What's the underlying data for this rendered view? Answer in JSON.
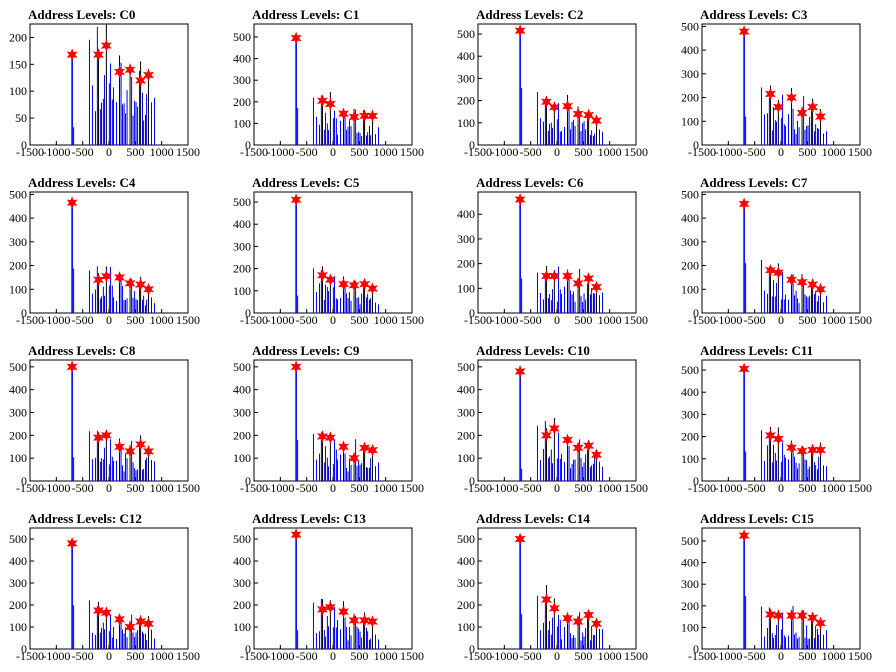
{
  "figure": {
    "style": {
      "frame_color": "#000000",
      "histogram_color": "#0000ff",
      "overflow_color": "#000000",
      "marker_color": "#ff0000",
      "marker_shape": "star"
    }
  },
  "chart_data": [
    {
      "type": "bar",
      "title": "Address Levels: C0",
      "xlim": [
        -1500,
        1500
      ],
      "ylim": [
        0,
        225
      ],
      "xticks": [
        "-1500",
        "-1000",
        "-500",
        "0",
        "500",
        "1000",
        "1500"
      ],
      "yticks": [
        "0",
        "50",
        "100",
        "150",
        "200"
      ],
      "peaks": [
        {
          "x": -700,
          "y": 168
        },
        {
          "x": -200,
          "y": 168
        },
        {
          "x": -50,
          "y": 185
        },
        {
          "x": 200,
          "y": 136
        },
        {
          "x": 400,
          "y": 140
        },
        {
          "x": 600,
          "y": 120
        },
        {
          "x": 750,
          "y": 130
        }
      ]
    },
    {
      "type": "bar",
      "title": "Address Levels: C1",
      "xlim": [
        -1500,
        1500
      ],
      "ylim": [
        0,
        560
      ],
      "xticks": [
        "-1500",
        "-1000",
        "-500",
        "0",
        "500",
        "1000",
        "1500"
      ],
      "yticks": [
        "0",
        "100",
        "200",
        "300",
        "400",
        "500"
      ],
      "peaks": [
        {
          "x": -700,
          "y": 495
        },
        {
          "x": -200,
          "y": 205
        },
        {
          "x": -50,
          "y": 190
        },
        {
          "x": 200,
          "y": 145
        },
        {
          "x": 400,
          "y": 130
        },
        {
          "x": 600,
          "y": 135
        },
        {
          "x": 750,
          "y": 135
        }
      ]
    },
    {
      "type": "bar",
      "title": "Address Levels: C2",
      "xlim": [
        -1500,
        1500
      ],
      "ylim": [
        0,
        545
      ],
      "xticks": [
        "-1500",
        "-1000",
        "-500",
        "0",
        "500",
        "1000",
        "1500"
      ],
      "yticks": [
        "0",
        "100",
        "200",
        "300",
        "400",
        "500"
      ],
      "peaks": [
        {
          "x": -700,
          "y": 515
        },
        {
          "x": -200,
          "y": 195
        },
        {
          "x": -50,
          "y": 170
        },
        {
          "x": 200,
          "y": 175
        },
        {
          "x": 400,
          "y": 140
        },
        {
          "x": 600,
          "y": 135
        },
        {
          "x": 750,
          "y": 110
        }
      ]
    },
    {
      "type": "bar",
      "title": "Address Levels: C3",
      "xlim": [
        -1500,
        1500
      ],
      "ylim": [
        0,
        510
      ],
      "xticks": [
        "-1500",
        "-1000",
        "-500",
        "0",
        "500",
        "1000",
        "1500"
      ],
      "yticks": [
        "0",
        "100",
        "200",
        "300",
        "400",
        "500"
      ],
      "peaks": [
        {
          "x": -700,
          "y": 478
        },
        {
          "x": -200,
          "y": 215
        },
        {
          "x": -50,
          "y": 160
        },
        {
          "x": 200,
          "y": 200
        },
        {
          "x": 400,
          "y": 135
        },
        {
          "x": 600,
          "y": 160
        },
        {
          "x": 750,
          "y": 120
        }
      ]
    },
    {
      "type": "bar",
      "title": "Address Levels: C4",
      "xlim": [
        -1500,
        1500
      ],
      "ylim": [
        0,
        510
      ],
      "xticks": [
        "-1500",
        "-1000",
        "-500",
        "0",
        "500",
        "1000",
        "1500"
      ],
      "yticks": [
        "0",
        "100",
        "200",
        "300",
        "400",
        "500"
      ],
      "peaks": [
        {
          "x": -700,
          "y": 465
        },
        {
          "x": -200,
          "y": 140
        },
        {
          "x": -50,
          "y": 155
        },
        {
          "x": 200,
          "y": 150
        },
        {
          "x": 400,
          "y": 125
        },
        {
          "x": 600,
          "y": 120
        },
        {
          "x": 750,
          "y": 100
        }
      ]
    },
    {
      "type": "bar",
      "title": "Address Levels: C5",
      "xlim": [
        -1500,
        1500
      ],
      "ylim": [
        0,
        545
      ],
      "xticks": [
        "-1500",
        "-1000",
        "-500",
        "0",
        "500",
        "1000",
        "1500"
      ],
      "yticks": [
        "0",
        "100",
        "200",
        "300",
        "400",
        "500"
      ],
      "peaks": [
        {
          "x": -700,
          "y": 510
        },
        {
          "x": -200,
          "y": 170
        },
        {
          "x": -50,
          "y": 150
        },
        {
          "x": 200,
          "y": 130
        },
        {
          "x": 400,
          "y": 125
        },
        {
          "x": 600,
          "y": 130
        },
        {
          "x": 750,
          "y": 110
        }
      ]
    },
    {
      "type": "bar",
      "title": "Address Levels: C6",
      "xlim": [
        -1500,
        1500
      ],
      "ylim": [
        0,
        490
      ],
      "xticks": [
        "-1500",
        "-1000",
        "-500",
        "0",
        "500",
        "1000",
        "1500"
      ],
      "yticks": [
        "0",
        "100",
        "200",
        "300",
        "400"
      ],
      "peaks": [
        {
          "x": -700,
          "y": 460
        },
        {
          "x": -200,
          "y": 150
        },
        {
          "x": -50,
          "y": 150
        },
        {
          "x": 200,
          "y": 150
        },
        {
          "x": 400,
          "y": 120
        },
        {
          "x": 600,
          "y": 140
        },
        {
          "x": 750,
          "y": 105
        }
      ]
    },
    {
      "type": "bar",
      "title": "Address Levels: C7",
      "xlim": [
        -1500,
        1500
      ],
      "ylim": [
        0,
        510
      ],
      "xticks": [
        "-1500",
        "-1000",
        "-500",
        "0",
        "500",
        "1000",
        "1500"
      ],
      "yticks": [
        "0",
        "100",
        "200",
        "300",
        "400",
        "500"
      ],
      "peaks": [
        {
          "x": -700,
          "y": 460
        },
        {
          "x": -200,
          "y": 180
        },
        {
          "x": -50,
          "y": 170
        },
        {
          "x": 200,
          "y": 140
        },
        {
          "x": 400,
          "y": 130
        },
        {
          "x": 600,
          "y": 120
        },
        {
          "x": 750,
          "y": 100
        }
      ]
    },
    {
      "type": "bar",
      "title": "Address Levels: C8",
      "xlim": [
        -1500,
        1500
      ],
      "ylim": [
        0,
        530
      ],
      "xticks": [
        "-1500",
        "-1000",
        "-500",
        "0",
        "500",
        "1000",
        "1500"
      ],
      "yticks": [
        "0",
        "100",
        "200",
        "300",
        "400",
        "500"
      ],
      "peaks": [
        {
          "x": -700,
          "y": 500
        },
        {
          "x": -200,
          "y": 190
        },
        {
          "x": -50,
          "y": 200
        },
        {
          "x": 200,
          "y": 150
        },
        {
          "x": 400,
          "y": 130
        },
        {
          "x": 600,
          "y": 160
        },
        {
          "x": 750,
          "y": 130
        }
      ]
    },
    {
      "type": "bar",
      "title": "Address Levels: C9",
      "xlim": [
        -1500,
        1500
      ],
      "ylim": [
        0,
        530
      ],
      "xticks": [
        "-1500",
        "-1000",
        "-500",
        "0",
        "500",
        "1000",
        "1500"
      ],
      "yticks": [
        "0",
        "100",
        "200",
        "300",
        "400",
        "500"
      ],
      "peaks": [
        {
          "x": -700,
          "y": 500
        },
        {
          "x": -200,
          "y": 195
        },
        {
          "x": -50,
          "y": 190
        },
        {
          "x": 200,
          "y": 150
        },
        {
          "x": 400,
          "y": 100
        },
        {
          "x": 600,
          "y": 145
        },
        {
          "x": 750,
          "y": 135
        }
      ]
    },
    {
      "type": "bar",
      "title": "Address Levels: C10",
      "xlim": [
        -1500,
        1500
      ],
      "ylim": [
        0,
        530
      ],
      "xticks": [
        "-1500",
        "-1000",
        "-500",
        "0",
        "500",
        "1000",
        "1500"
      ],
      "yticks": [
        "0",
        "100",
        "200",
        "300",
        "400",
        "500"
      ],
      "peaks": [
        {
          "x": -700,
          "y": 480
        },
        {
          "x": -200,
          "y": 200
        },
        {
          "x": -50,
          "y": 230
        },
        {
          "x": 200,
          "y": 180
        },
        {
          "x": 400,
          "y": 145
        },
        {
          "x": 600,
          "y": 155
        },
        {
          "x": 750,
          "y": 115
        }
      ]
    },
    {
      "type": "bar",
      "title": "Address Levels: C11",
      "xlim": [
        -1500,
        1500
      ],
      "ylim": [
        0,
        545
      ],
      "xticks": [
        "-1500",
        "-1000",
        "-500",
        "0",
        "500",
        "1000",
        "1500"
      ],
      "yticks": [
        "0",
        "100",
        "200",
        "300",
        "400",
        "500"
      ],
      "peaks": [
        {
          "x": -700,
          "y": 505
        },
        {
          "x": -200,
          "y": 205
        },
        {
          "x": -50,
          "y": 190
        },
        {
          "x": 200,
          "y": 150
        },
        {
          "x": 400,
          "y": 135
        },
        {
          "x": 600,
          "y": 140
        },
        {
          "x": 750,
          "y": 140
        }
      ]
    },
    {
      "type": "bar",
      "title": "Address Levels: C12",
      "xlim": [
        -1500,
        1500
      ],
      "ylim": [
        0,
        550
      ],
      "xticks": [
        "-1500",
        "-1000",
        "-500",
        "0",
        "500",
        "1000",
        "1500"
      ],
      "yticks": [
        "0",
        "100",
        "200",
        "300",
        "400",
        "500"
      ],
      "peaks": [
        {
          "x": -700,
          "y": 480
        },
        {
          "x": -200,
          "y": 175
        },
        {
          "x": -50,
          "y": 165
        },
        {
          "x": 200,
          "y": 135
        },
        {
          "x": 400,
          "y": 100
        },
        {
          "x": 600,
          "y": 125
        },
        {
          "x": 750,
          "y": 115
        }
      ]
    },
    {
      "type": "bar",
      "title": "Address Levels: C13",
      "xlim": [
        -1500,
        1500
      ],
      "ylim": [
        0,
        550
      ],
      "xticks": [
        "-1500",
        "-1000",
        "-500",
        "0",
        "500",
        "1000",
        "1500"
      ],
      "yticks": [
        "0",
        "100",
        "200",
        "300",
        "400",
        "500"
      ],
      "peaks": [
        {
          "x": -700,
          "y": 520
        },
        {
          "x": -200,
          "y": 180
        },
        {
          "x": -50,
          "y": 190
        },
        {
          "x": 200,
          "y": 170
        },
        {
          "x": 400,
          "y": 130
        },
        {
          "x": 600,
          "y": 130
        },
        {
          "x": 750,
          "y": 125
        }
      ]
    },
    {
      "type": "bar",
      "title": "Address Levels: C14",
      "xlim": [
        -1500,
        1500
      ],
      "ylim": [
        0,
        550
      ],
      "xticks": [
        "-1500",
        "-1000",
        "-500",
        "0",
        "500",
        "1000",
        "1500"
      ],
      "yticks": [
        "0",
        "100",
        "200",
        "300",
        "400",
        "500"
      ],
      "peaks": [
        {
          "x": -700,
          "y": 500
        },
        {
          "x": -200,
          "y": 225
        },
        {
          "x": -50,
          "y": 185
        },
        {
          "x": 200,
          "y": 140
        },
        {
          "x": 400,
          "y": 125
        },
        {
          "x": 600,
          "y": 155
        },
        {
          "x": 750,
          "y": 115
        }
      ]
    },
    {
      "type": "bar",
      "title": "Address Levels: C15",
      "xlim": [
        -1500,
        1500
      ],
      "ylim": [
        0,
        560
      ],
      "xticks": [
        "-1500",
        "-1000",
        "-500",
        "0",
        "500",
        "1000",
        "1500"
      ],
      "yticks": [
        "0",
        "100",
        "200",
        "300",
        "400",
        "500"
      ],
      "peaks": [
        {
          "x": -700,
          "y": 525
        },
        {
          "x": -200,
          "y": 160
        },
        {
          "x": -50,
          "y": 155
        },
        {
          "x": 200,
          "y": 155
        },
        {
          "x": 400,
          "y": 155
        },
        {
          "x": 600,
          "y": 145
        },
        {
          "x": 750,
          "y": 120
        }
      ]
    }
  ]
}
